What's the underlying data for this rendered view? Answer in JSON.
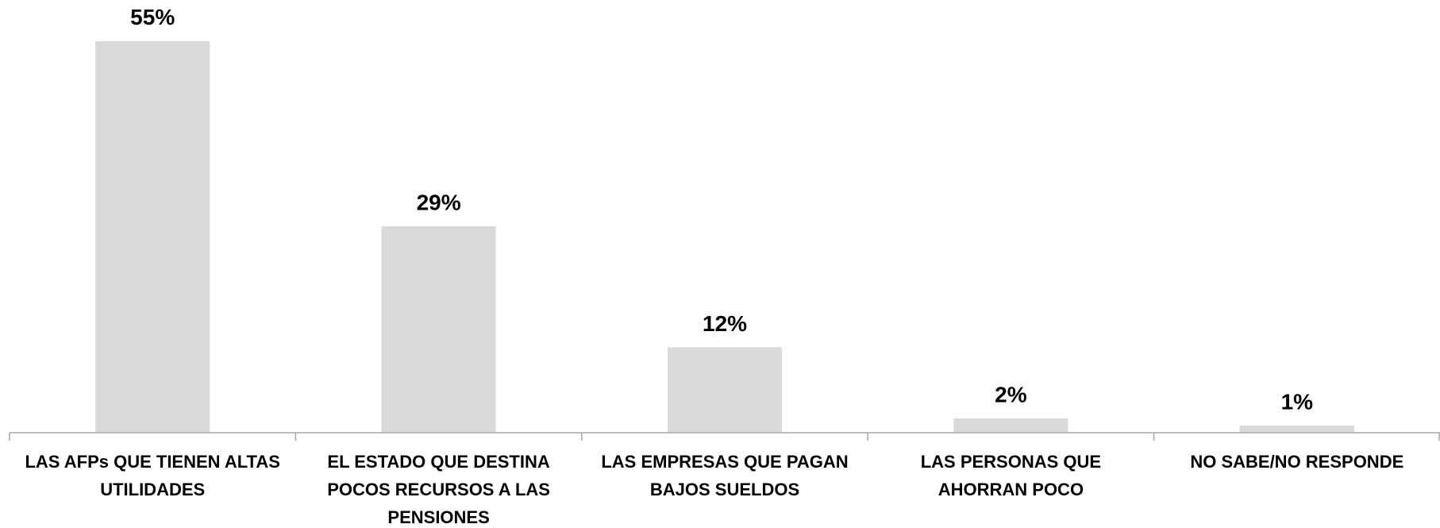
{
  "chart_data": {
    "type": "bar",
    "categories": [
      [
        "LAS AFPs QUE TIENEN ALTAS",
        "UTILIDADES"
      ],
      [
        "EL ESTADO QUE DESTINA",
        "POCOS RECURSOS A LAS",
        "PENSIONES"
      ],
      [
        "LAS EMPRESAS QUE PAGAN",
        "BAJOS SUELDOS"
      ],
      [
        "LAS PERSONAS QUE",
        "AHORRAN POCO"
      ],
      [
        "NO SABE/NO RESPONDE"
      ]
    ],
    "values": [
      55,
      29,
      12,
      2,
      1
    ],
    "value_labels": [
      "55%",
      "29%",
      "12%",
      "2%",
      "1%"
    ],
    "color": "#d9d9d9",
    "ylim": [
      0,
      60
    ]
  }
}
